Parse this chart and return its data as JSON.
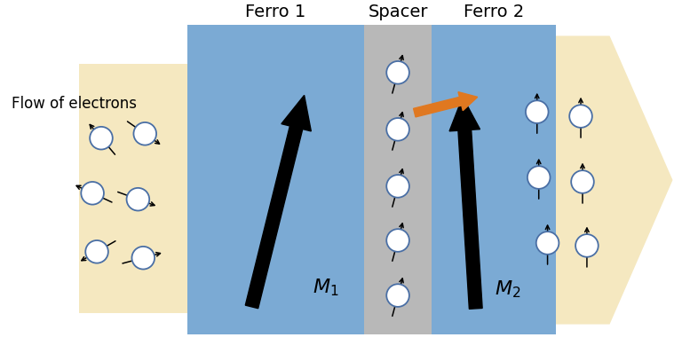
{
  "fig_width": 7.68,
  "fig_height": 4.07,
  "dpi": 100,
  "bg_color": "#ffffff",
  "ferro1_color": "#7baad4",
  "ferro2_color": "#7baad4",
  "spacer_color": "#b8b8b8",
  "arrow_region_color": "#f5e8c0",
  "title_ferro1": "Ferro 1",
  "title_spacer": "Spacer",
  "title_ferro2": "Ferro 2",
  "label_flow": "Flow of electrons",
  "orange_color": "#e07820"
}
